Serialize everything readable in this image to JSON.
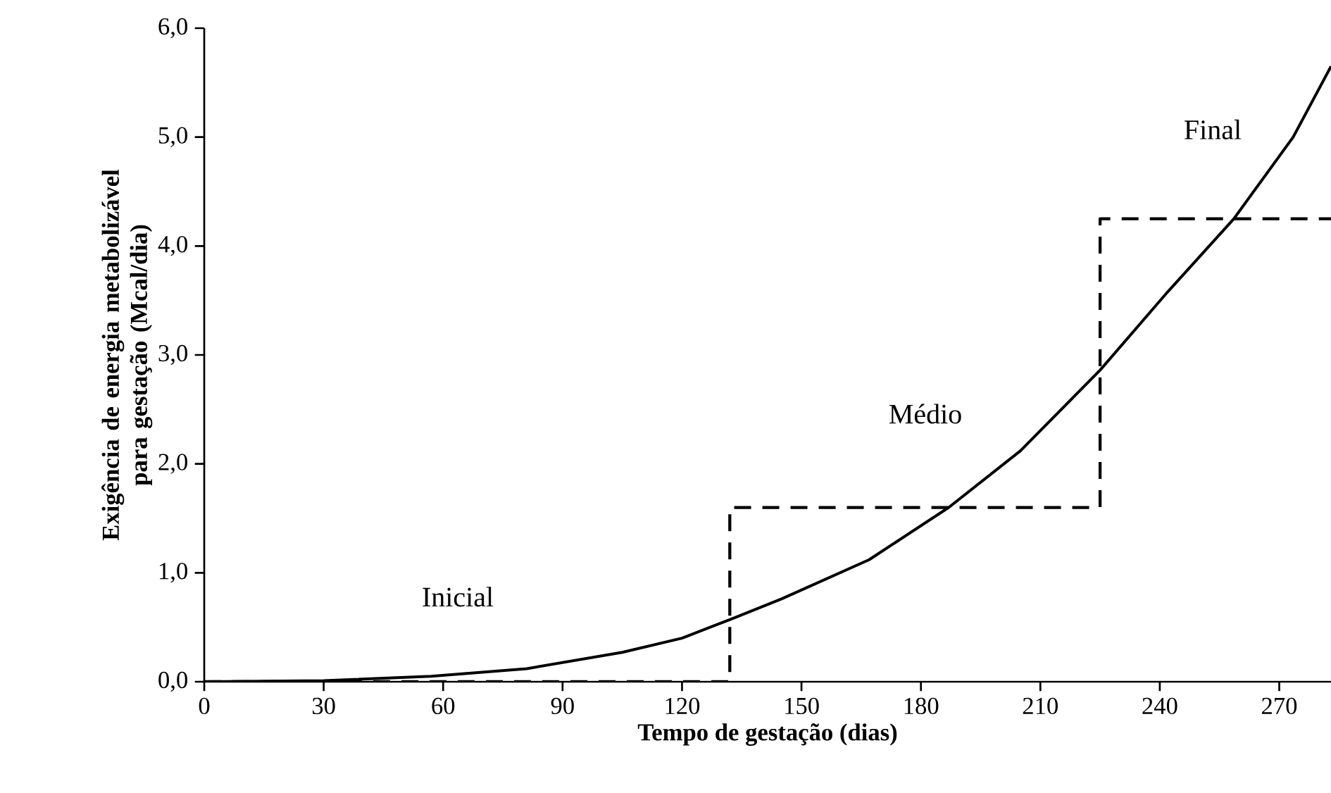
{
  "chart_data": {
    "type": "line",
    "xlabel": "Tempo de gestação (dias)",
    "ylabel": "Exigência de energia metabolizável para gestação (Mcal/dia)",
    "xlim": [
      0,
      283
    ],
    "xticks": [
      0,
      30,
      60,
      90,
      120,
      150,
      180,
      210,
      240,
      270
    ],
    "ylim": [
      0,
      6
    ],
    "yticks": [
      {
        "value": 0,
        "label": "0,0"
      },
      {
        "value": 1,
        "label": "1,0"
      },
      {
        "value": 2,
        "label": "2,0"
      },
      {
        "value": 3,
        "label": "3,0"
      },
      {
        "value": 4,
        "label": "4,0"
      },
      {
        "value": 5,
        "label": "5,0"
      },
      {
        "value": 6,
        "label": "6,0"
      }
    ],
    "marker": "none",
    "series": [
      {
        "color": "#000000",
        "line_style": "solid",
        "x": [
          0,
          30,
          57,
          81,
          105,
          120,
          132,
          145,
          167,
          187,
          205,
          225,
          242,
          258.6,
          273.5,
          283
        ],
        "values": [
          0,
          0.01,
          0.05,
          0.12,
          0.27,
          0.4,
          0.57,
          0.76,
          1.12,
          1.6,
          2.12,
          2.86,
          3.58,
          4.25,
          5.0,
          5.65
        ]
      },
      {
        "color": "#000000",
        "line_style": "dashed",
        "x": [
          0,
          132,
          132,
          225,
          225,
          283
        ],
        "values": [
          0,
          0,
          1.6,
          1.6,
          4.25,
          4.25
        ]
      }
    ],
    "annotations": [
      "Inicial",
      "Médio",
      "Final"
    ]
  }
}
